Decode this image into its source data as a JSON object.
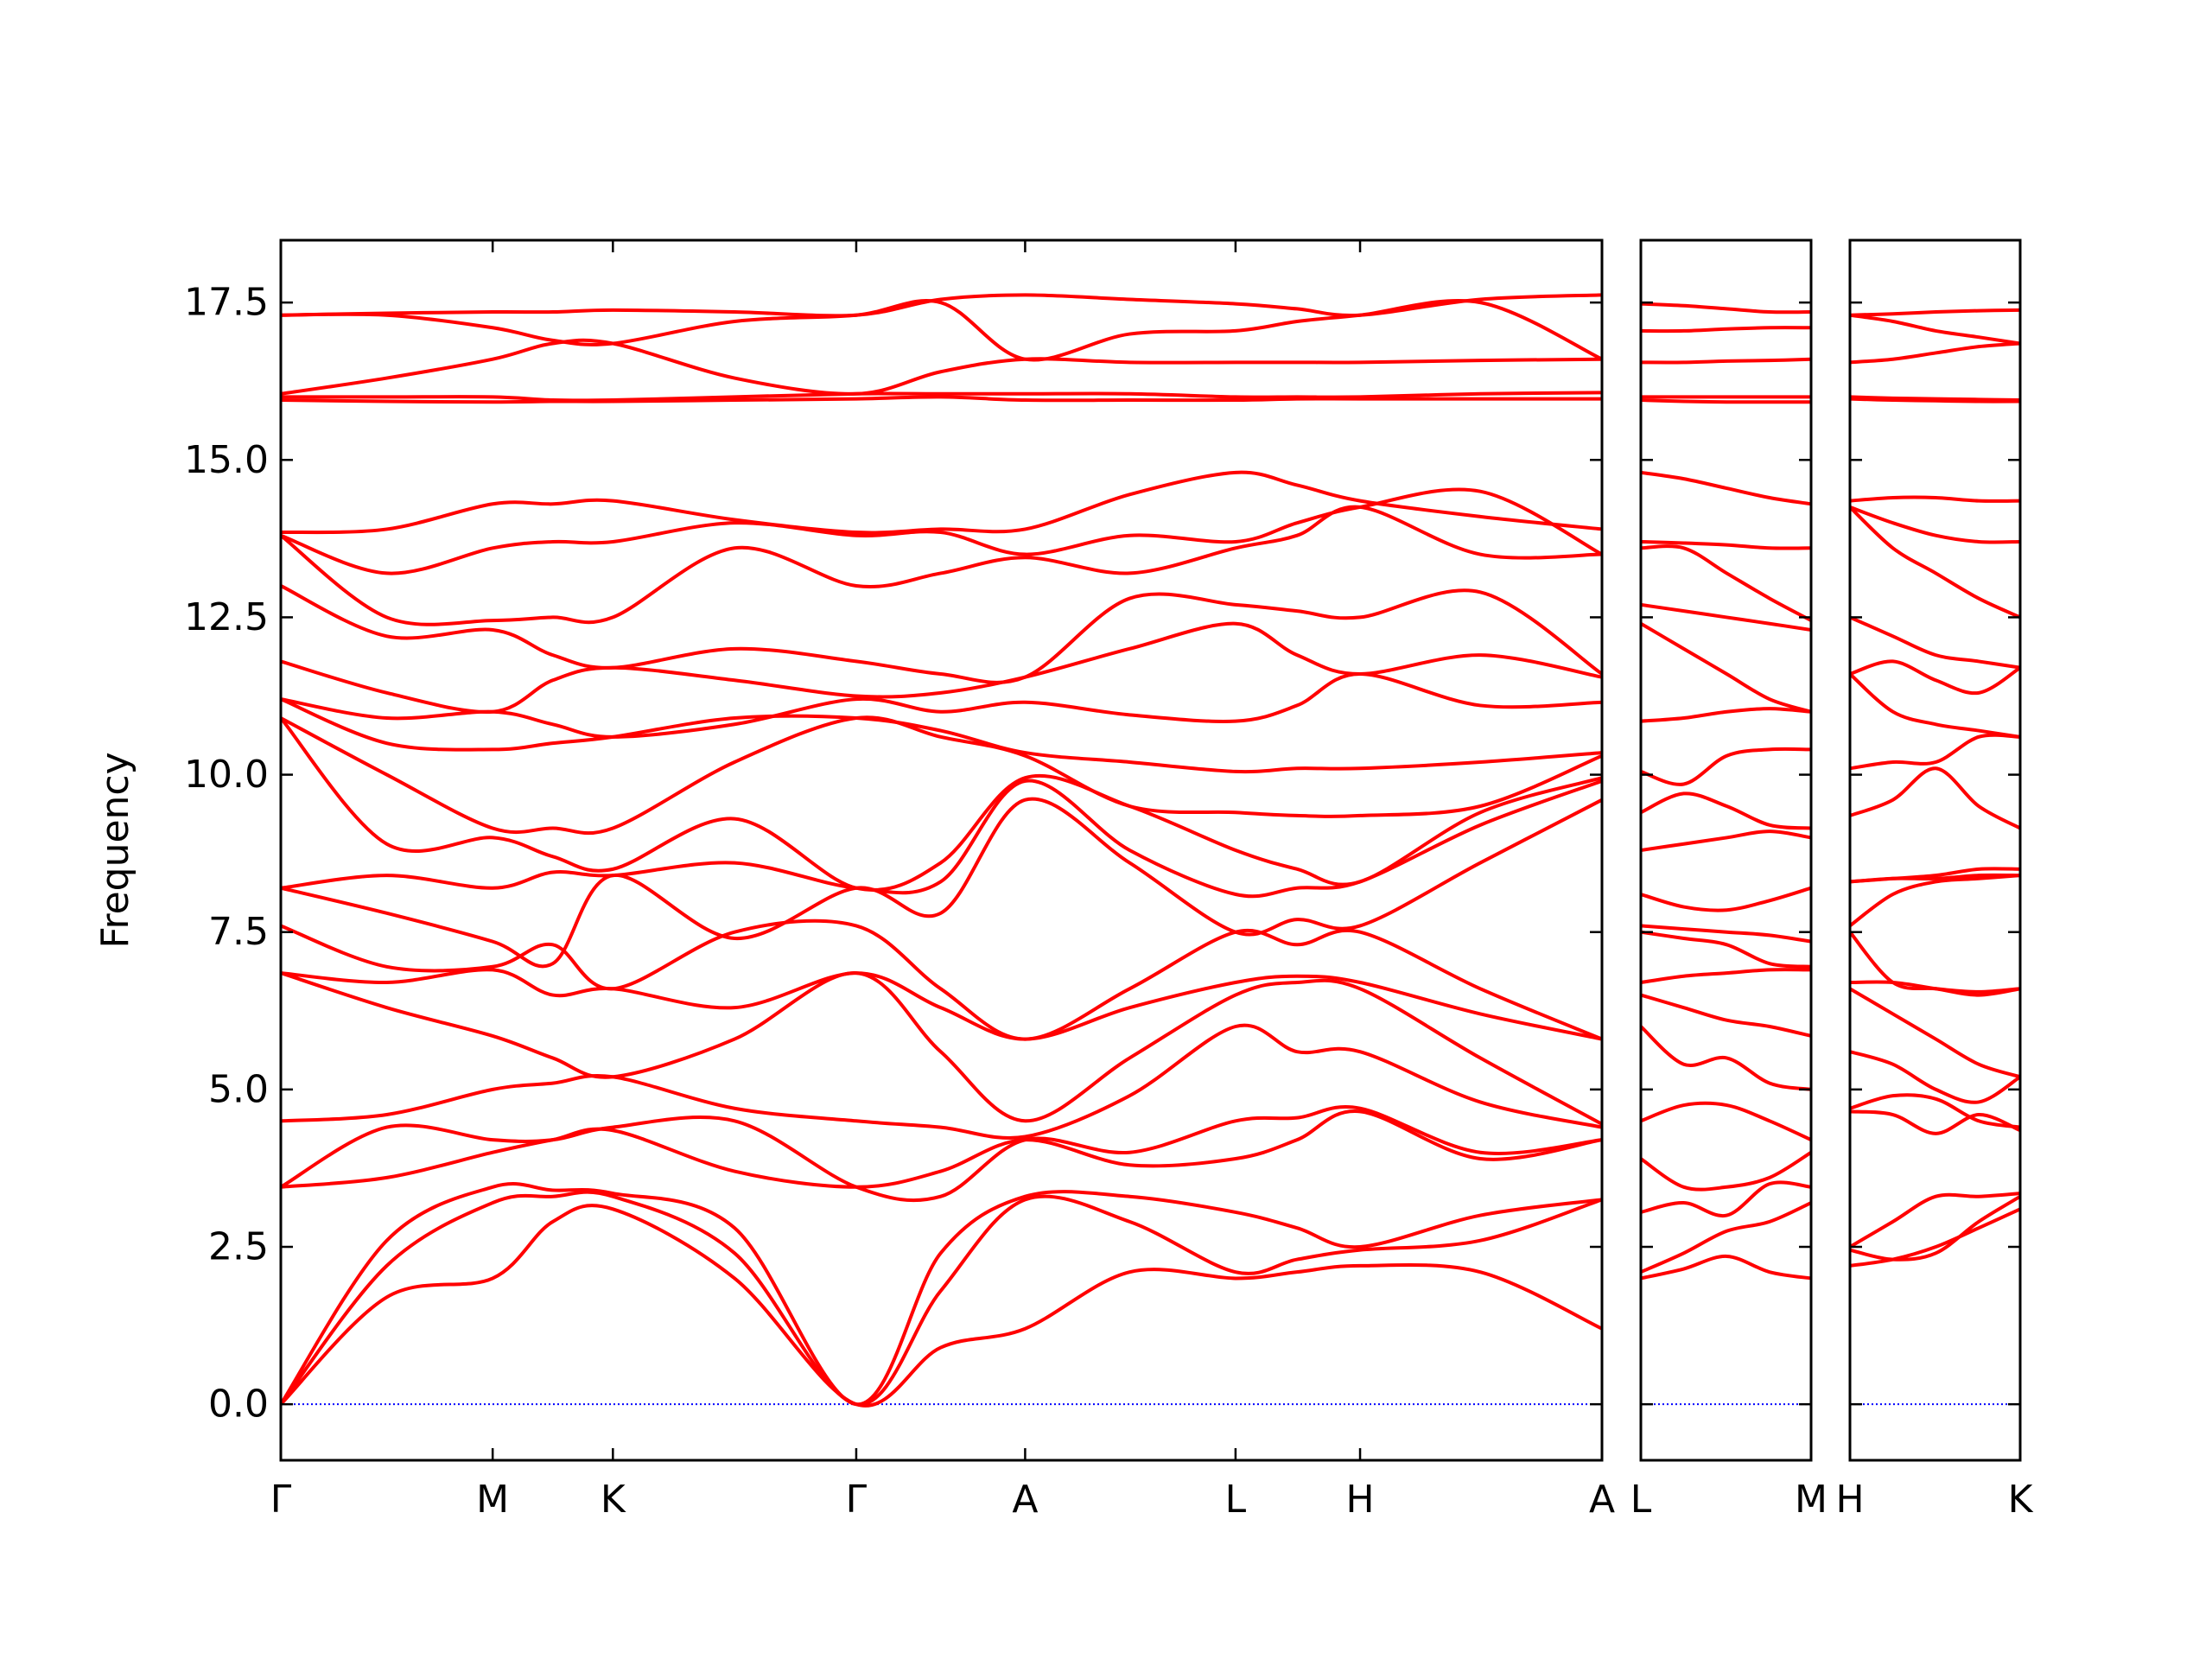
{
  "chart_data": [
    {
      "type": "line",
      "color": "#ff0000",
      "ylabel": "Frequency",
      "hline": 0,
      "hline_color": "#0000ff",
      "xlim": [
        0,
        9.23
      ],
      "ylim": [
        -0.89,
        18.49
      ],
      "x": [
        0,
        0.74,
        1.48,
        1.9,
        2.32,
        3.17,
        4.02,
        4.61,
        5.2,
        5.93,
        6.67,
        7.1,
        7.54,
        8.38,
        9.23
      ],
      "xticks": [
        {
          "value": 0,
          "label": "Γ"
        },
        {
          "value": 1.48,
          "label": "M"
        },
        {
          "value": 2.32,
          "label": "K"
        },
        {
          "value": 4.02,
          "label": "Γ"
        },
        {
          "value": 5.2,
          "label": "A"
        },
        {
          "value": 6.67,
          "label": "L"
        },
        {
          "value": 7.54,
          "label": "H"
        },
        {
          "value": 9.23,
          "label": "A"
        }
      ],
      "yticks": [
        {
          "value": 0,
          "label": "0.0"
        },
        {
          "value": 2.5,
          "label": "2.5"
        },
        {
          "value": 5,
          "label": "5.0"
        },
        {
          "value": 7.5,
          "label": "7.5"
        },
        {
          "value": 10,
          "label": "10.0"
        },
        {
          "value": 12.5,
          "label": "12.5"
        },
        {
          "value": 15,
          "label": "15.0"
        },
        {
          "value": 17.5,
          "label": "17.5"
        }
      ],
      "series": [
        {
          "values": [
            0,
            1.7,
            2.0,
            2.9,
            3.1,
            2.0,
            0,
            0.9,
            1.2,
            2.1,
            2.0,
            2.1,
            2.2,
            2.1,
            1.2
          ]
        },
        {
          "values": [
            0,
            2.2,
            3.2,
            3.3,
            3.3,
            2.4,
            0,
            1.8,
            3.25,
            2.9,
            2.1,
            2.3,
            2.45,
            2.6,
            3.25
          ]
        },
        {
          "values": [
            0,
            2.6,
            3.45,
            3.4,
            3.35,
            2.8,
            0,
            2.4,
            3.3,
            3.3,
            3.05,
            2.8,
            2.5,
            3.0,
            3.25
          ]
        },
        {
          "values": [
            3.45,
            3.6,
            4.0,
            4.2,
            4.35,
            3.7,
            3.45,
            3.7,
            4.2,
            3.8,
            3.9,
            4.2,
            4.65,
            3.9,
            4.2
          ]
        },
        {
          "values": [
            3.45,
            4.4,
            4.2,
            4.2,
            4.4,
            4.5,
            3.45,
            3.3,
            4.2,
            4.0,
            4.5,
            4.55,
            4.7,
            4.0,
            4.2
          ]
        },
        {
          "values": [
            4.5,
            4.6,
            5.0,
            5.1,
            5.2,
            4.7,
            4.5,
            4.4,
            4.25,
            4.9,
            6.0,
            5.6,
            5.6,
            4.8,
            4.4
          ]
        },
        {
          "values": [
            6.85,
            6.3,
            5.85,
            5.5,
            5.2,
            5.8,
            6.85,
            5.6,
            4.5,
            5.5,
            6.5,
            6.7,
            6.6,
            5.5,
            4.45
          ]
        },
        {
          "values": [
            6.85,
            6.7,
            6.9,
            6.5,
            6.6,
            6.3,
            6.85,
            6.3,
            5.8,
            6.3,
            6.7,
            6.8,
            6.7,
            6.2,
            5.8
          ]
        },
        {
          "values": [
            7.6,
            6.95,
            6.95,
            7.3,
            6.6,
            7.5,
            7.6,
            6.6,
            5.8,
            6.6,
            7.5,
            7.3,
            7.5,
            6.6,
            5.8
          ]
        },
        {
          "values": [
            8.2,
            7.8,
            7.35,
            7.0,
            8.4,
            7.4,
            8.2,
            7.8,
            9.6,
            8.6,
            7.5,
            7.7,
            7.6,
            8.6,
            9.6
          ]
        },
        {
          "values": [
            8.2,
            8.4,
            8.2,
            8.45,
            8.4,
            8.6,
            8.2,
            8.3,
            9.9,
            8.8,
            8.1,
            8.2,
            8.3,
            9.2,
            9.9
          ]
        },
        {
          "values": [
            10.9,
            8.9,
            9.0,
            8.7,
            8.5,
            9.3,
            8.2,
            8.6,
            9.95,
            9.5,
            8.8,
            8.5,
            8.3,
            9.4,
            9.95
          ]
        },
        {
          "values": [
            10.9,
            10.0,
            9.15,
            9.15,
            9.15,
            10.2,
            10.9,
            10.6,
            10.3,
            9.5,
            9.4,
            9.35,
            9.35,
            9.5,
            10.3
          ]
        },
        {
          "values": [
            11.2,
            10.5,
            10.4,
            10.5,
            10.6,
            10.9,
            10.9,
            10.7,
            10.35,
            10.2,
            10.05,
            10.1,
            10.1,
            10.2,
            10.35
          ]
        },
        {
          "values": [
            11.2,
            10.9,
            11.0,
            10.8,
            10.6,
            10.8,
            11.2,
            11.0,
            11.15,
            10.95,
            10.85,
            11.1,
            11.6,
            11.1,
            11.15
          ]
        },
        {
          "values": [
            11.8,
            11.3,
            11.0,
            11.5,
            11.7,
            11.5,
            11.25,
            11.3,
            11.55,
            12.0,
            12.4,
            11.9,
            11.6,
            11.9,
            11.55
          ]
        },
        {
          "values": [
            13.0,
            12.2,
            12.3,
            11.9,
            11.7,
            12.0,
            11.8,
            11.6,
            11.55,
            12.8,
            12.7,
            12.6,
            12.5,
            12.9,
            11.6
          ]
        },
        {
          "values": [
            13.8,
            12.5,
            12.45,
            12.5,
            12.5,
            13.6,
            13.0,
            13.2,
            13.45,
            13.2,
            13.6,
            13.8,
            14.25,
            13.5,
            13.5
          ]
        },
        {
          "values": [
            13.8,
            13.2,
            13.6,
            13.7,
            13.7,
            14.0,
            13.8,
            13.85,
            13.5,
            13.8,
            13.7,
            14.0,
            14.25,
            14.5,
            13.5
          ]
        },
        {
          "values": [
            13.85,
            13.9,
            14.3,
            14.3,
            14.35,
            14.05,
            13.85,
            13.9,
            13.9,
            14.45,
            14.8,
            14.6,
            14.35,
            14.1,
            13.9
          ]
        },
        {
          "values": [
            15.95,
            15.93,
            15.92,
            15.93,
            15.93,
            15.95,
            15.97,
            16.0,
            15.95,
            15.95,
            15.95,
            15.97,
            15.97,
            15.97,
            15.97
          ]
        },
        {
          "values": [
            16.0,
            16.0,
            16.0,
            15.95,
            15.95,
            16.0,
            16.05,
            16.05,
            16.05,
            16.05,
            16.0,
            16.0,
            16.0,
            16.05,
            16.07
          ]
        },
        {
          "values": [
            16.05,
            16.3,
            16.6,
            16.85,
            16.85,
            16.3,
            16.05,
            16.4,
            16.6,
            16.55,
            16.55,
            16.55,
            16.55,
            16.58,
            16.6
          ]
        },
        {
          "values": [
            17.3,
            17.3,
            17.1,
            16.9,
            16.85,
            17.2,
            17.3,
            17.5,
            16.6,
            17.0,
            17.05,
            17.2,
            17.3,
            17.5,
            16.6
          ]
        },
        {
          "values": [
            17.3,
            17.33,
            17.35,
            17.35,
            17.38,
            17.35,
            17.3,
            17.55,
            17.62,
            17.55,
            17.48,
            17.4,
            17.3,
            17.55,
            17.62
          ]
        }
      ]
    },
    {
      "type": "line",
      "color": "#ff0000",
      "hline": 0,
      "hline_color": "#0000ff",
      "xlim": [
        0,
        1.19
      ],
      "ylim": [
        -0.89,
        18.49
      ],
      "x": [
        0,
        0.3,
        0.6,
        0.9,
        1.19
      ],
      "xticks": [
        {
          "value": 0,
          "label": "L"
        },
        {
          "value": 1.19,
          "label": "M"
        }
      ],
      "yticks": [
        0,
        2.5,
        5,
        7.5,
        10,
        12.5,
        15,
        17.5
      ],
      "series": [
        {
          "values": [
            2.0,
            2.15,
            2.35,
            2.1,
            2.0
          ]
        },
        {
          "values": [
            2.1,
            2.4,
            2.75,
            2.9,
            3.2
          ]
        },
        {
          "values": [
            3.05,
            3.2,
            3.0,
            3.5,
            3.45
          ]
        },
        {
          "values": [
            3.9,
            3.45,
            3.45,
            3.6,
            4.0
          ]
        },
        {
          "values": [
            4.5,
            4.75,
            4.75,
            4.5,
            4.2
          ]
        },
        {
          "values": [
            6.0,
            5.4,
            5.5,
            5.1,
            5.0
          ]
        },
        {
          "values": [
            6.5,
            6.3,
            6.1,
            6.0,
            5.85
          ]
        },
        {
          "values": [
            6.7,
            6.8,
            6.85,
            6.9,
            6.9
          ]
        },
        {
          "values": [
            7.5,
            7.4,
            7.3,
            7.0,
            6.95
          ]
        },
        {
          "values": [
            7.6,
            7.55,
            7.5,
            7.45,
            7.35
          ]
        },
        {
          "values": [
            8.1,
            7.9,
            7.85,
            8.0,
            8.2
          ]
        },
        {
          "values": [
            8.8,
            8.9,
            9.0,
            9.1,
            9.0
          ]
        },
        {
          "values": [
            9.4,
            9.7,
            9.5,
            9.2,
            9.15
          ]
        },
        {
          "values": [
            10.05,
            9.85,
            10.3,
            10.4,
            10.4
          ]
        },
        {
          "values": [
            10.85,
            10.9,
            11.0,
            11.05,
            11.0
          ]
        },
        {
          "values": [
            12.4,
            12.0,
            11.6,
            11.2,
            11.0
          ]
        },
        {
          "values": [
            12.7,
            12.6,
            12.5,
            12.4,
            12.3
          ]
        },
        {
          "values": [
            13.6,
            13.6,
            13.2,
            12.8,
            12.45
          ]
        },
        {
          "values": [
            13.7,
            13.68,
            13.65,
            13.6,
            13.6
          ]
        },
        {
          "values": [
            14.8,
            14.7,
            14.55,
            14.4,
            14.3
          ]
        },
        {
          "values": [
            15.95,
            15.93,
            15.92,
            15.92,
            15.92
          ]
        },
        {
          "values": [
            16.0,
            16.0,
            16.0,
            16.0,
            16.0
          ]
        },
        {
          "values": [
            16.55,
            16.55,
            16.57,
            16.58,
            16.6
          ]
        },
        {
          "values": [
            17.05,
            17.05,
            17.08,
            17.1,
            17.1
          ]
        },
        {
          "values": [
            17.48,
            17.45,
            17.4,
            17.35,
            17.35
          ]
        }
      ]
    },
    {
      "type": "line",
      "color": "#ff0000",
      "hline": 0,
      "hline_color": "#0000ff",
      "xlim": [
        0,
        1.19
      ],
      "ylim": [
        -0.89,
        18.49
      ],
      "x": [
        0,
        0.3,
        0.6,
        0.9,
        1.19
      ],
      "xticks": [
        {
          "value": 0,
          "label": "H"
        },
        {
          "value": 1.19,
          "label": "K"
        }
      ],
      "yticks": [
        0,
        2.5,
        5,
        7.5,
        10,
        12.5,
        15,
        17.5
      ],
      "series": [
        {
          "values": [
            2.2,
            2.3,
            2.5,
            2.8,
            3.1
          ]
        },
        {
          "values": [
            2.45,
            2.3,
            2.4,
            2.9,
            3.3
          ]
        },
        {
          "values": [
            2.5,
            2.9,
            3.3,
            3.3,
            3.35
          ]
        },
        {
          "values": [
            4.65,
            4.6,
            4.3,
            4.6,
            4.35
          ]
        },
        {
          "values": [
            4.7,
            4.9,
            4.85,
            4.5,
            4.4
          ]
        },
        {
          "values": [
            5.6,
            5.4,
            5.0,
            4.8,
            5.2
          ]
        },
        {
          "values": [
            6.6,
            6.2,
            5.8,
            5.4,
            5.2
          ]
        },
        {
          "values": [
            6.7,
            6.7,
            6.6,
            6.5,
            6.6
          ]
        },
        {
          "values": [
            7.5,
            6.7,
            6.6,
            6.55,
            6.6
          ]
        },
        {
          "values": [
            7.6,
            8.1,
            8.3,
            8.35,
            8.4
          ]
        },
        {
          "values": [
            8.3,
            8.35,
            8.35,
            8.4,
            8.4
          ]
        },
        {
          "values": [
            8.3,
            8.35,
            8.4,
            8.5,
            8.5
          ]
        },
        {
          "values": [
            9.35,
            9.6,
            10.1,
            9.5,
            9.15
          ]
        },
        {
          "values": [
            10.1,
            10.2,
            10.2,
            10.6,
            10.6
          ]
        },
        {
          "values": [
            11.6,
            11.0,
            10.8,
            10.7,
            10.6
          ]
        },
        {
          "values": [
            11.6,
            11.8,
            11.5,
            11.3,
            11.7
          ]
        },
        {
          "values": [
            12.5,
            12.2,
            11.9,
            11.8,
            11.7
          ]
        },
        {
          "values": [
            14.25,
            13.6,
            13.2,
            12.8,
            12.5
          ]
        },
        {
          "values": [
            14.25,
            14.0,
            13.8,
            13.7,
            13.7
          ]
        },
        {
          "values": [
            14.35,
            14.4,
            14.4,
            14.35,
            14.35
          ]
        },
        {
          "values": [
            15.97,
            15.95,
            15.94,
            15.93,
            15.93
          ]
        },
        {
          "values": [
            16.0,
            15.98,
            15.97,
            15.96,
            15.95
          ]
        },
        {
          "values": [
            16.55,
            16.6,
            16.7,
            16.8,
            16.85
          ]
        },
        {
          "values": [
            17.3,
            17.2,
            17.05,
            16.95,
            16.85
          ]
        },
        {
          "values": [
            17.3,
            17.32,
            17.35,
            17.37,
            17.38
          ]
        }
      ]
    }
  ]
}
